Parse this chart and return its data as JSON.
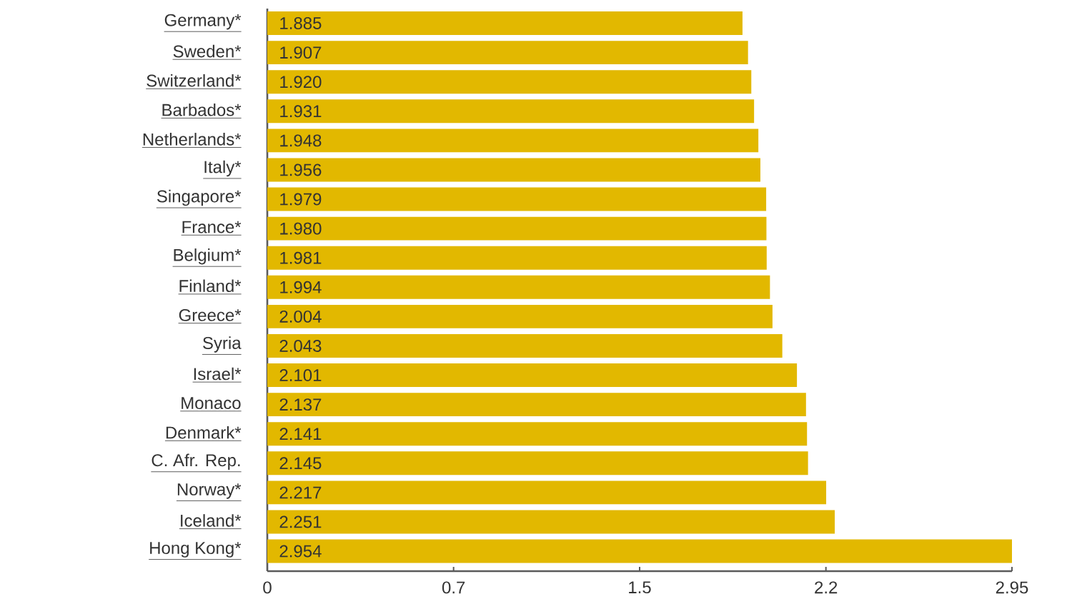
{
  "chart_data": {
    "type": "bar",
    "orientation": "horizontal",
    "categories": [
      "Germany*",
      "Sweden*",
      "Switzerland*",
      "Barbados*",
      "Netherlands*",
      "Italy*",
      "Singapore*",
      "France*",
      "Belgium*",
      "Finland*",
      "Greece*",
      "Syria",
      "Israel*",
      "Monaco",
      "Denmark*",
      "C. Afr. Rep.",
      "Norway*",
      "Iceland*",
      "Hong Kong*"
    ],
    "values": [
      1.885,
      1.907,
      1.92,
      1.931,
      1.948,
      1.956,
      1.979,
      1.98,
      1.981,
      1.994,
      2.004,
      2.043,
      2.101,
      2.137,
      2.141,
      2.145,
      2.217,
      2.251,
      2.954
    ],
    "value_labels": [
      "1.885",
      "1.907",
      "1.920",
      "1.931",
      "1.948",
      "1.956",
      "1.979",
      "1.980",
      "1.981",
      "1.994",
      "2.004",
      "2.043",
      "2.101",
      "2.137",
      "2.141",
      "2.145",
      "2.217",
      "2.251",
      "2.954"
    ],
    "color": "#e2b800",
    "xlim": [
      0,
      2.954
    ],
    "xticks": [
      0,
      {
        "value": 0.739,
        "label": "0.7"
      },
      {
        "value": 1.477,
        "label": "1.5"
      },
      {
        "value": 2.216,
        "label": "2.2"
      },
      {
        "value": 2.954,
        "label": "2.95"
      }
    ]
  }
}
